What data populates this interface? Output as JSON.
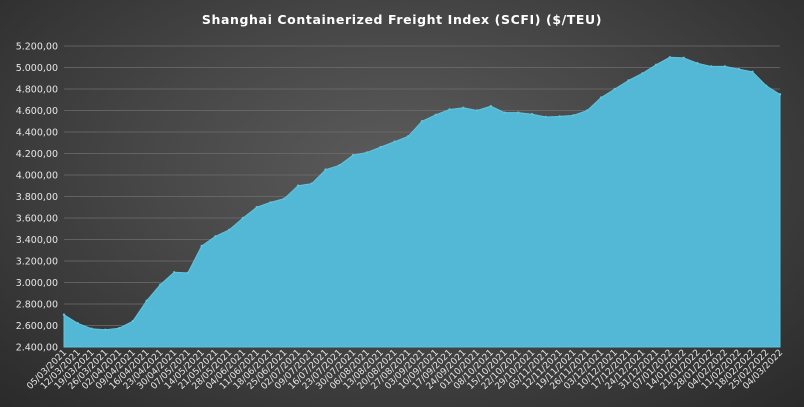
{
  "chart_data": {
    "type": "area",
    "title": "Shanghai Containerized Freight Index  (SCFI) ($/TEU)",
    "xlabel": "",
    "ylabel": "",
    "ylim": [
      2400,
      5200
    ],
    "y_tick_step": 200,
    "y_tick_labels": [
      "2.400,00",
      "2.600,00",
      "2.800,00",
      "3.000,00",
      "3.200,00",
      "3.400,00",
      "3.600,00",
      "3.800,00",
      "4.000,00",
      "4.200,00",
      "4.400,00",
      "4.600,00",
      "4.800,00",
      "5.000,00",
      "5.200,00"
    ],
    "x_tick_labels": [
      "05/03/2021",
      "12/03/2021",
      "19/03/2021",
      "26/03/2021",
      "02/04/2021",
      "09/04/2021",
      "16/04/2021",
      "23/04/2021",
      "30/04/2021",
      "07/05/2021",
      "14/05/2021",
      "21/05/2021",
      "28/05/2021",
      "04/06/2021",
      "11/06/2021",
      "18/06/2021",
      "25/06/2021",
      "02/07/2021",
      "09/07/2021",
      "16/07/2021",
      "23/07/2021",
      "30/07/2021",
      "06/08/2021",
      "13/08/2021",
      "20/08/2021",
      "27/08/2021",
      "03/09/2021",
      "10/09/2021",
      "17/09/2021",
      "24/09/2021",
      "01/10/2021",
      "08/10/2021",
      "15/10/2021",
      "22/10/2021",
      "29/10/2021",
      "05/11/2021",
      "12/11/2021",
      "19/11/2021",
      "26/11/2021",
      "03/12/2021",
      "10/12/2021",
      "17/12/2021",
      "24/12/2021",
      "31/12/2021",
      "07/01/2022",
      "14/01/2022",
      "21/01/2022",
      "28/01/2022",
      "04/02/2022",
      "11/02/2022",
      "18/02/2022",
      "25/02/2022",
      "04/03/2022"
    ],
    "grid": true,
    "fill_color": "#52b8d5",
    "series": [
      {
        "values": [
          2700,
          2620,
          2570,
          2560,
          2575,
          2640,
          2830,
          2980,
          3095,
          3090,
          3340,
          3430,
          3490,
          3600,
          3700,
          3745,
          3780,
          3900,
          3920,
          4050,
          4090,
          4185,
          4210,
          4260,
          4310,
          4360,
          4500,
          4560,
          4610,
          4625,
          4600,
          4640,
          4580,
          4580,
          4565,
          4540,
          4545,
          4555,
          4600,
          4720,
          4800,
          4880,
          4945,
          5025,
          5095,
          5090,
          5040,
          5010,
          5010,
          4985,
          4960,
          4830,
          4750
        ]
      }
    ]
  }
}
